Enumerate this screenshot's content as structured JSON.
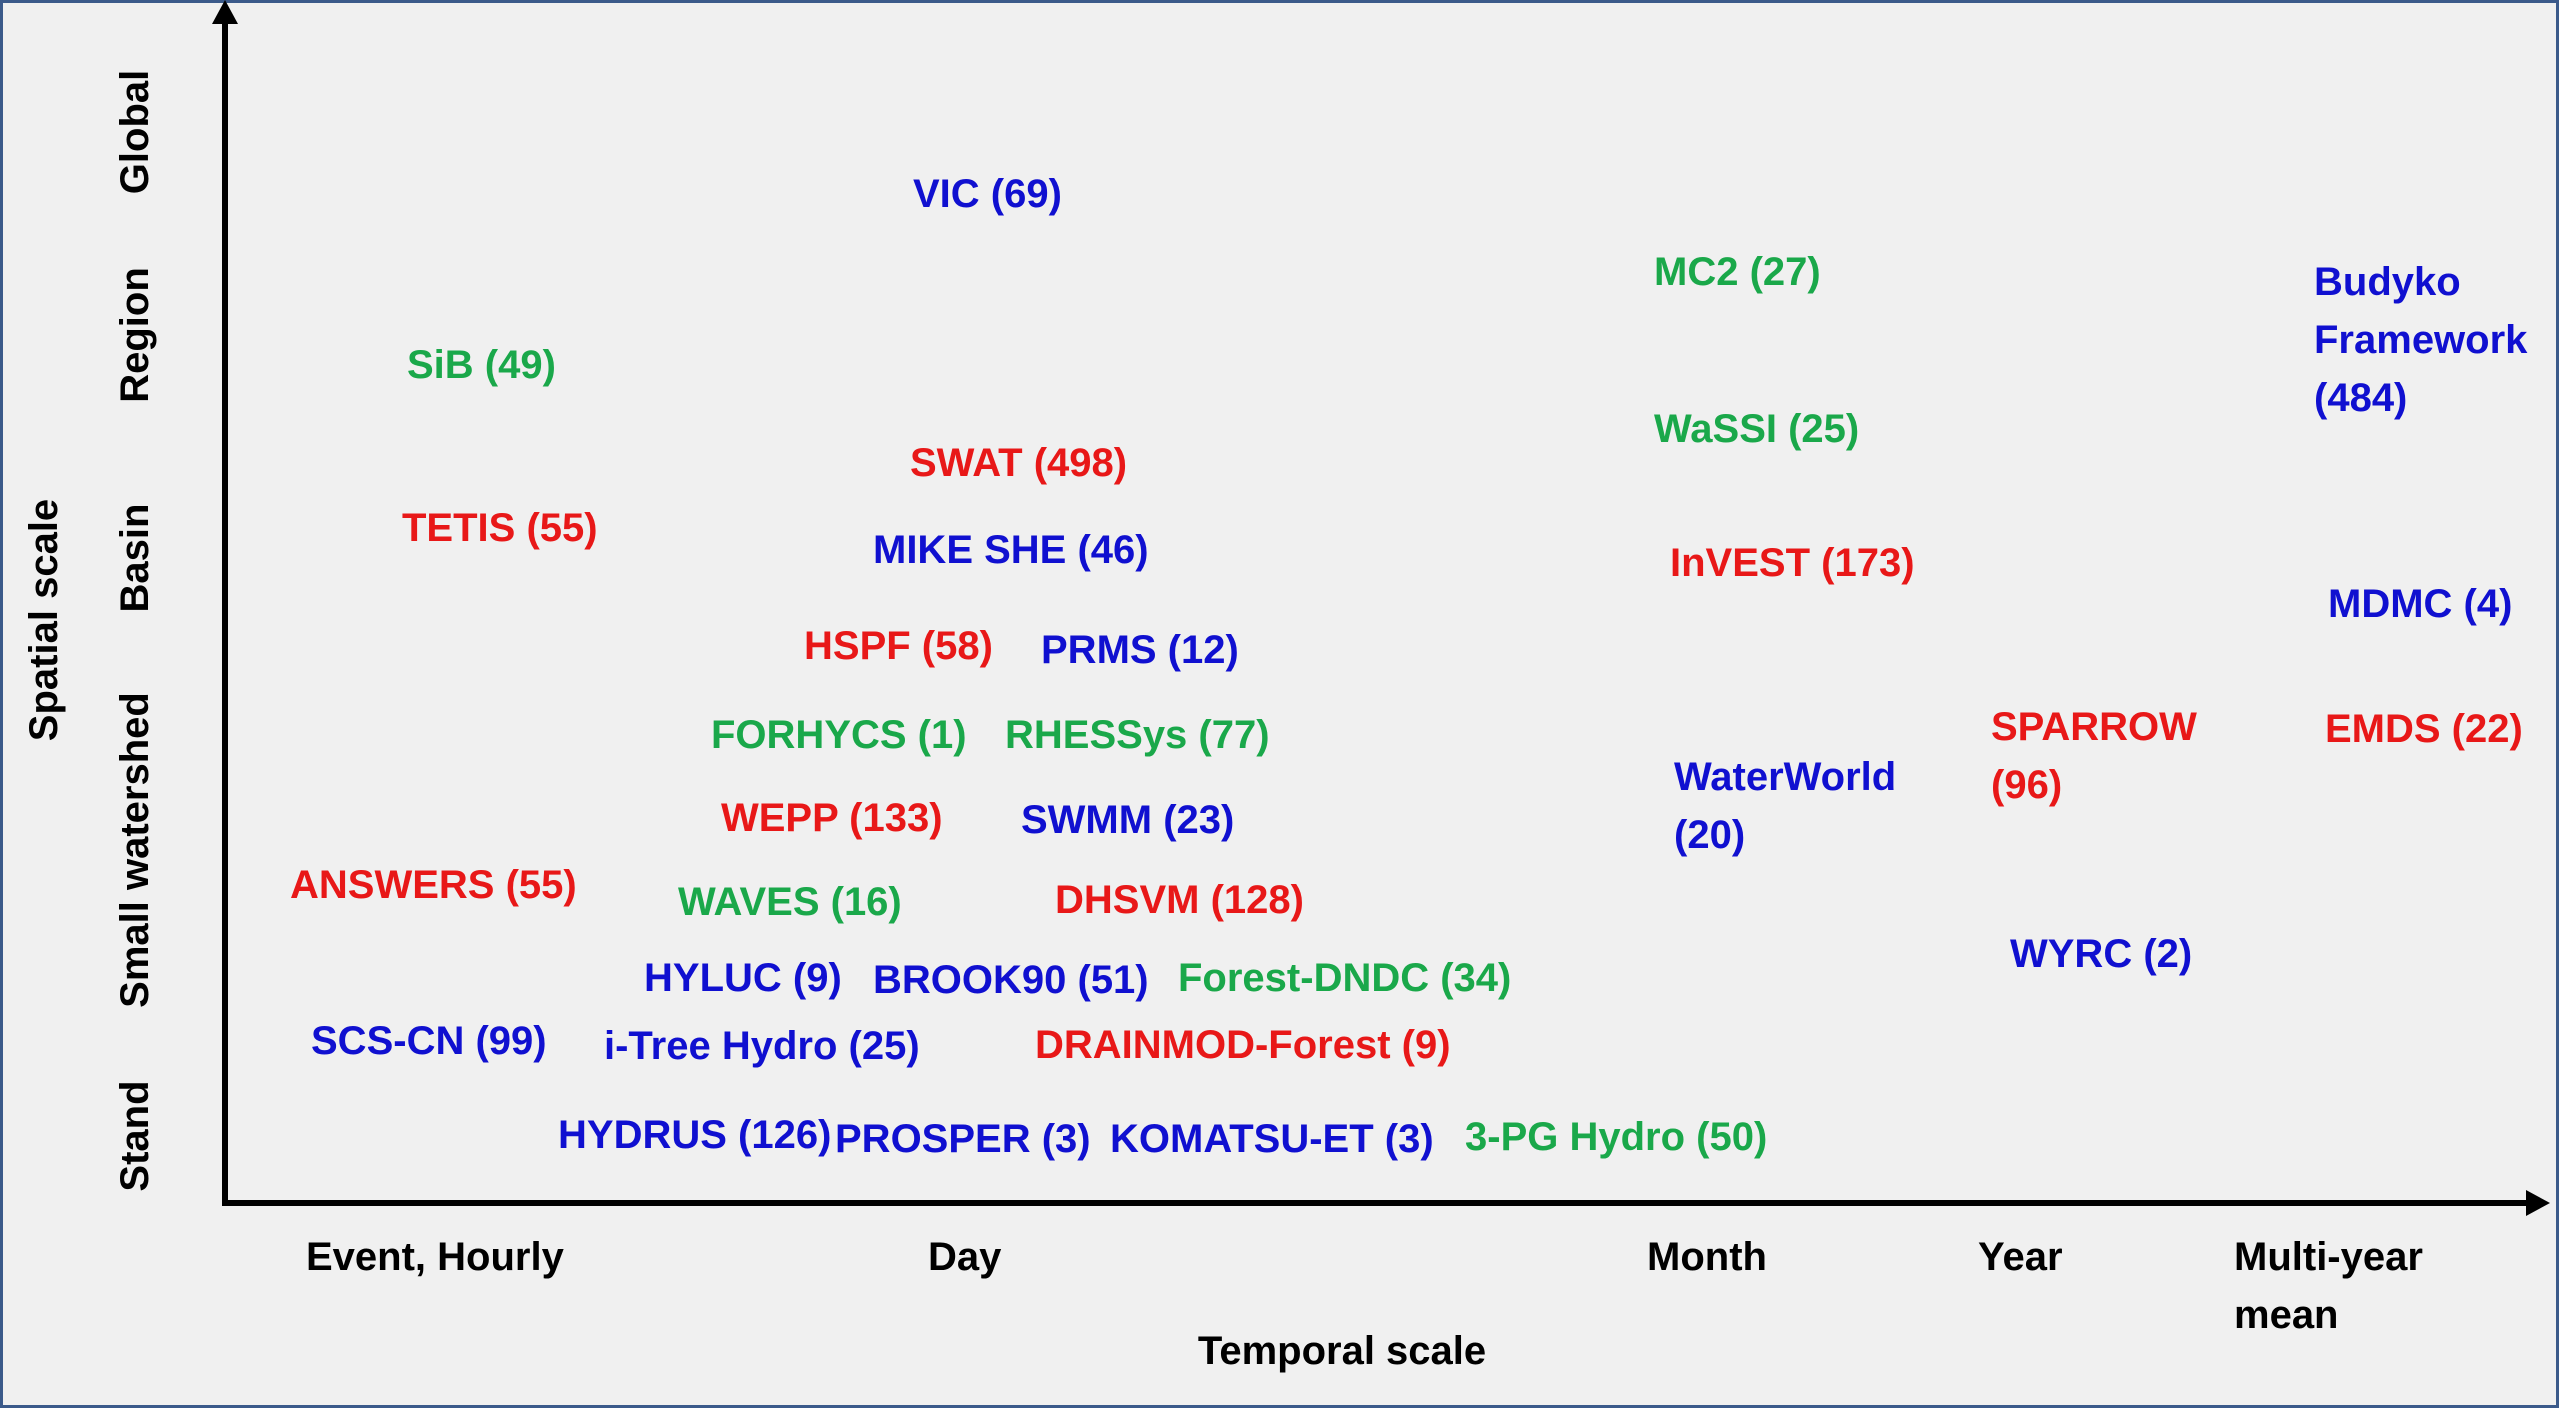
{
  "axes": {
    "x_title": "Temporal scale",
    "y_title": "Spatial scale",
    "x_ticks": [
      {
        "lines": [
          "Event, Hourly"
        ]
      },
      {
        "lines": [
          "Day"
        ]
      },
      {
        "lines": [
          "Month"
        ]
      },
      {
        "lines": [
          "Year"
        ]
      },
      {
        "lines": [
          "Multi-year",
          "mean"
        ]
      }
    ],
    "y_ticks": [
      "Global",
      "Region",
      "Basin",
      "Small watershed",
      "Stand"
    ]
  },
  "colors": {
    "blue": "#1010d0",
    "green": "#1aa84a",
    "red": "#e81818",
    "axis": "#000000"
  },
  "models": [
    {
      "lines": [
        "VIC (69)"
      ],
      "color": "blue"
    },
    {
      "lines": [
        "MC2 (27)"
      ],
      "color": "green"
    },
    {
      "lines": [
        "Budyko",
        "Framework",
        "(484)"
      ],
      "color": "blue"
    },
    {
      "lines": [
        "SiB (49)"
      ],
      "color": "green"
    },
    {
      "lines": [
        "WaSSI (25)"
      ],
      "color": "green"
    },
    {
      "lines": [
        "SWAT (498)"
      ],
      "color": "red"
    },
    {
      "lines": [
        "TETIS (55)"
      ],
      "color": "red"
    },
    {
      "lines": [
        "MIKE SHE (46)"
      ],
      "color": "blue"
    },
    {
      "lines": [
        "InVEST (173)"
      ],
      "color": "red"
    },
    {
      "lines": [
        "MDMC (4)"
      ],
      "color": "blue"
    },
    {
      "lines": [
        "HSPF (58)"
      ],
      "color": "red"
    },
    {
      "lines": [
        "PRMS (12)"
      ],
      "color": "blue"
    },
    {
      "lines": [
        "SPARROW",
        "(96)"
      ],
      "color": "red"
    },
    {
      "lines": [
        "EMDS (22)"
      ],
      "color": "red"
    },
    {
      "lines": [
        "FORHYCS (1)"
      ],
      "color": "green"
    },
    {
      "lines": [
        "RHESSys (77)"
      ],
      "color": "green"
    },
    {
      "lines": [
        "WaterWorld",
        "(20)"
      ],
      "color": "blue"
    },
    {
      "lines": [
        "WEPP (133)"
      ],
      "color": "red"
    },
    {
      "lines": [
        "SWMM (23)"
      ],
      "color": "blue"
    },
    {
      "lines": [
        "ANSWERS (55)"
      ],
      "color": "red"
    },
    {
      "lines": [
        "WAVES (16)"
      ],
      "color": "green"
    },
    {
      "lines": [
        "DHSVM (128)"
      ],
      "color": "red"
    },
    {
      "lines": [
        "WYRC (2)"
      ],
      "color": "blue"
    },
    {
      "lines": [
        "HYLUC (9)"
      ],
      "color": "blue"
    },
    {
      "lines": [
        "BROOK90 (51)"
      ],
      "color": "blue"
    },
    {
      "lines": [
        "Forest-DNDC (34)"
      ],
      "color": "green"
    },
    {
      "lines": [
        "SCS-CN (99)"
      ],
      "color": "blue"
    },
    {
      "lines": [
        "i-Tree Hydro (25)"
      ],
      "color": "blue"
    },
    {
      "lines": [
        "DRAINMOD-Forest (9)"
      ],
      "color": "red"
    },
    {
      "lines": [
        "HYDRUS (126)"
      ],
      "color": "blue"
    },
    {
      "lines": [
        "PROSPER (3)"
      ],
      "color": "blue"
    },
    {
      "lines": [
        "KOMATSU-ET (3)"
      ],
      "color": "blue"
    },
    {
      "lines": [
        "3-PG Hydro (50)"
      ],
      "color": "green"
    }
  ]
}
